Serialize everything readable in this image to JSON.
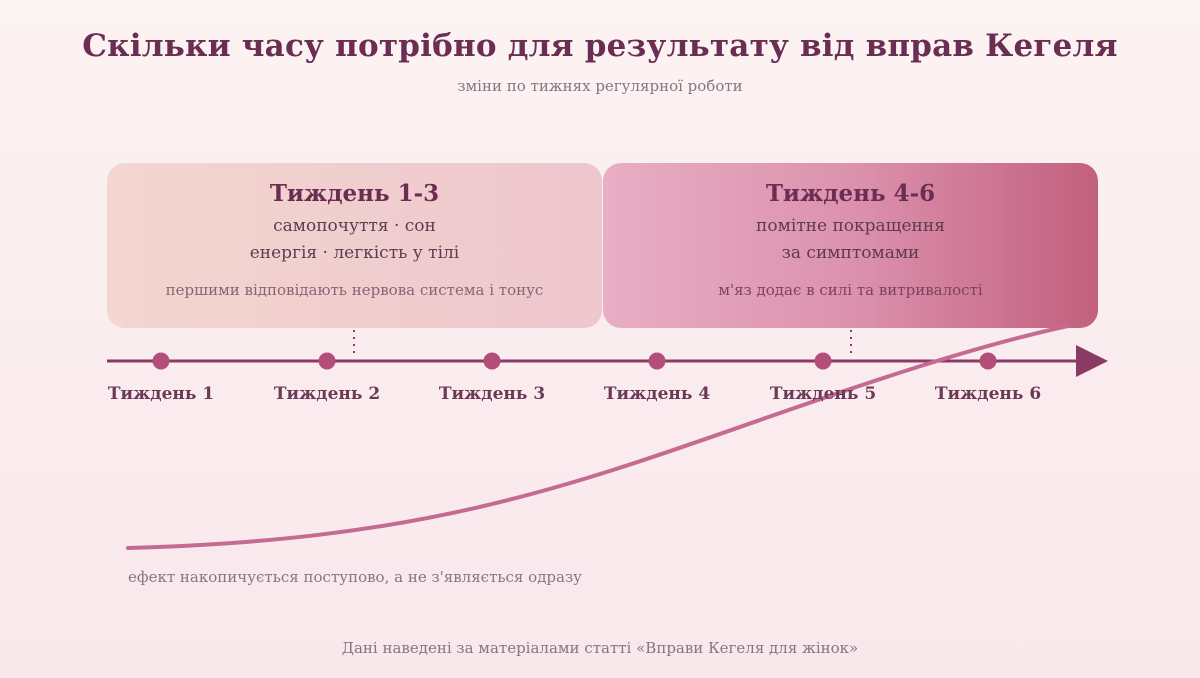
{
  "header": {
    "title": "Скільки часу потрібно для результату від вправ Кегеля",
    "subtitle": "зміни по тижнях регулярної роботи"
  },
  "phases": [
    {
      "title": "Тиждень 1-3",
      "line1": "самопочуття · сон",
      "line2": "енергія · легкість у тілі",
      "note": "першими відповідають нервова система і тонус"
    },
    {
      "title": "Тиждень 4-6",
      "line1": "помітне покращення",
      "line2": "за симптомами",
      "note": "м'яз додає в силі та витривалості"
    }
  ],
  "weeks": [
    "Тиждень 1",
    "Тиждень 2",
    "Тиждень 3",
    "Тиждень 4",
    "Тиждень 5",
    "Тиждень 6"
  ],
  "growth_note": "ефект накопичується поступово, а не з'являється одразу",
  "footer": "Дані наведені за матеріалами статті «Вправи Кегеля для жінок»",
  "colors": {
    "axis": "#8b3a64",
    "marker": "#b24e77",
    "curve": "#c56b91",
    "title": "#6b2d52"
  }
}
